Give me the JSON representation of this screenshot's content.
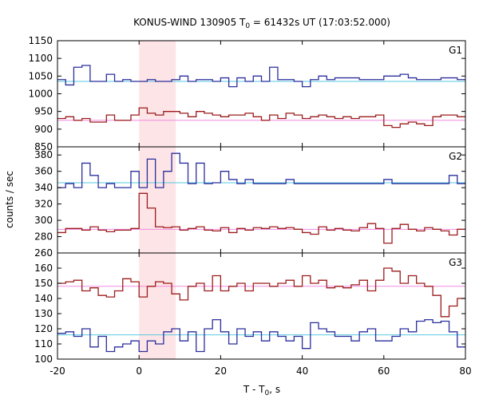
{
  "chart_data": {
    "type": "line",
    "title": {
      "prefix": "KONUS-WIND 130905 T",
      "sub": "0",
      "suffix": " = 61432s UT (17:03:52.000)"
    },
    "xlabel": {
      "prefix": "T - T",
      "sub": "0",
      "suffix": ", s"
    },
    "ylabel": "counts / sec",
    "xlim": [
      -20,
      80
    ],
    "x_ticks": [
      -20,
      0,
      20,
      40,
      60,
      80
    ],
    "highlight_interval": [
      0,
      9
    ],
    "colors": {
      "blue_series": "#2b2f9c",
      "red_series": "#9c1c1c",
      "cyan_line": "#57c8e0",
      "pink_line": "#f08ce0",
      "highlight": "#fde4e6"
    },
    "bin_edges": [
      -20,
      -18,
      -16,
      -14,
      -12,
      -10,
      -8,
      -6,
      -4,
      -2,
      0,
      2,
      4,
      6,
      8,
      10,
      12,
      14,
      16,
      18,
      20,
      22,
      24,
      26,
      28,
      30,
      32,
      34,
      36,
      38,
      40,
      42,
      44,
      46,
      48,
      50,
      52,
      54,
      56,
      58,
      60,
      62,
      64,
      66,
      68,
      70,
      72,
      74,
      76,
      78,
      80
    ],
    "panels": [
      {
        "label": "G1",
        "ylim": [
          850,
          1150
        ],
        "y_ticks": [
          850,
          900,
          950,
          1000,
          1050,
          1100,
          1150
        ],
        "series": [
          {
            "color_key": "blue_series",
            "values": [
              1040,
              1025,
              1075,
              1080,
              1035,
              1035,
              1055,
              1035,
              1040,
              1035,
              1035,
              1040,
              1035,
              1035,
              1040,
              1050,
              1035,
              1040,
              1040,
              1035,
              1045,
              1020,
              1045,
              1035,
              1050,
              1035,
              1075,
              1040,
              1040,
              1035,
              1020,
              1040,
              1050,
              1040,
              1045,
              1045,
              1045,
              1040,
              1040,
              1040,
              1050,
              1050,
              1055,
              1045,
              1040,
              1040,
              1040,
              1045,
              1045,
              1040
            ],
            "level": 1035,
            "level_color_key": "cyan_line"
          },
          {
            "color_key": "red_series",
            "values": [
              930,
              935,
              925,
              930,
              920,
              920,
              940,
              925,
              925,
              940,
              960,
              945,
              940,
              950,
              950,
              945,
              935,
              950,
              945,
              940,
              935,
              940,
              940,
              945,
              935,
              925,
              940,
              930,
              945,
              940,
              930,
              935,
              940,
              935,
              930,
              935,
              930,
              935,
              935,
              940,
              910,
              905,
              915,
              920,
              915,
              910,
              935,
              940,
              940,
              935
            ],
            "level": 925,
            "level_color_key": "pink_line"
          }
        ]
      },
      {
        "label": "G2",
        "ylim": [
          260,
          390
        ],
        "y_ticks": [
          260,
          280,
          300,
          320,
          340,
          360,
          380
        ],
        "series": [
          {
            "color_key": "blue_series",
            "values": [
              340,
              345,
              340,
              370,
              355,
              340,
              345,
              340,
              340,
              360,
              340,
              375,
              340,
              360,
              382,
              370,
              345,
              370,
              345,
              346,
              360,
              350,
              345,
              350,
              345,
              345,
              345,
              345,
              350,
              345,
              345,
              345,
              345,
              345,
              345,
              345,
              345,
              345,
              345,
              345,
              350,
              345,
              345,
              345,
              345,
              345,
              345,
              345,
              355,
              345
            ],
            "level": 346,
            "level_color_key": "cyan_line"
          },
          {
            "color_key": "red_series",
            "values": [
              285,
              290,
              290,
              288,
              292,
              288,
              286,
              288,
              288,
              290,
              333,
              315,
              292,
              291,
              292,
              288,
              290,
              292,
              288,
              287,
              291,
              285,
              290,
              288,
              291,
              290,
              292,
              290,
              291,
              289,
              285,
              283,
              292,
              288,
              290,
              288,
              287,
              291,
              296,
              290,
              272,
              290,
              295,
              289,
              287,
              291,
              289,
              287,
              282,
              289
            ],
            "level": 289,
            "level_color_key": "pink_line"
          }
        ]
      },
      {
        "label": "G3",
        "ylim": [
          100,
          170
        ],
        "y_ticks": [
          100,
          110,
          120,
          130,
          140,
          150,
          160
        ],
        "series": [
          {
            "color_key": "blue_series",
            "values": [
              117,
              118,
              115,
              120,
              108,
              115,
              105,
              108,
              110,
              112,
              105,
              112,
              110,
              118,
              120,
              112,
              118,
              105,
              120,
              126,
              118,
              110,
              120,
              115,
              118,
              112,
              118,
              115,
              112,
              115,
              107,
              124,
              120,
              118,
              115,
              115,
              112,
              118,
              120,
              112,
              112,
              115,
              120,
              118,
              125,
              126,
              124,
              125,
              118,
              108
            ],
            "level": 116,
            "level_color_key": "cyan_line"
          },
          {
            "color_key": "red_series",
            "values": [
              150,
              151,
              152,
              145,
              147,
              142,
              141,
              145,
              153,
              151,
              141,
              148,
              151,
              150,
              143,
              139,
              148,
              150,
              145,
              155,
              145,
              148,
              150,
              145,
              150,
              150,
              148,
              150,
              152,
              148,
              155,
              150,
              152,
              147,
              148,
              147,
              149,
              152,
              145,
              152,
              160,
              158,
              150,
              155,
              150,
              148,
              142,
              128,
              135,
              140
            ],
            "level": 148,
            "level_color_key": "pink_line"
          }
        ]
      }
    ]
  }
}
